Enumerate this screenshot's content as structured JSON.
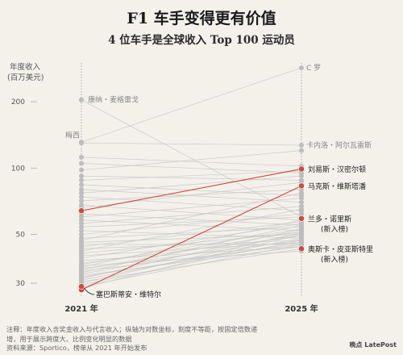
{
  "title": "F1 车手变得更有价值",
  "subtitle": "4 位车手是全球收入 Top 100 运动员",
  "notes": {
    "line1": "注释：年度收入含奖金收入与代言收入；纵轴为对数坐标，刻度不等距，按固定倍数递",
    "line2": "增，用于展示跨度大、比例变化明显的数据",
    "line3": "资料来源：Sportico，榜单从 2021 年开始发布"
  },
  "watermark": "晚点 LatePost",
  "colors": {
    "highlight": "#cf4a3d",
    "grey": "#c4c4c4",
    "axis": "#999999",
    "background": "#f3f1ea"
  },
  "chart_data": {
    "type": "line",
    "ylabel": [
      "年度收入",
      "(百万美元)"
    ],
    "yscale": "log",
    "ylim": [
      26,
      300
    ],
    "yticks": [
      30,
      50,
      100,
      200
    ],
    "x": [
      "2021 年",
      "2025 年"
    ],
    "highlighted": [
      {
        "name": "刘易斯・汉密尔顿",
        "values": [
          64,
          99
        ]
      },
      {
        "name": "马克斯・维斯塔潘",
        "values": [
          28,
          83
        ]
      },
      {
        "name": "塞巴斯蒂安・维特尔",
        "values": [
          29,
          null
        ]
      },
      {
        "name": "兰多・诺里斯",
        "extra": "(新入榜)",
        "values": [
          null,
          59
        ]
      },
      {
        "name": "奥斯卡・皮亚斯特里",
        "extra": "(新入榜)",
        "values": [
          null,
          43
        ]
      }
    ],
    "annotations": [
      {
        "label": "康纳・麦格雷戈",
        "year": "2021 年",
        "value": 204
      },
      {
        "label": "梅西",
        "year": "2021 年",
        "value": 131
      },
      {
        "label": "C 罗",
        "year": "2025 年",
        "value": 285
      },
      {
        "label": "卡内洛・阿尔瓦雷斯",
        "year": "2025 年",
        "value": 127
      }
    ],
    "others": [
      [
        204,
        60
      ],
      [
        131,
        285
      ],
      [
        130,
        127
      ],
      [
        112,
        102
      ],
      [
        105,
        95
      ],
      [
        98,
        120
      ],
      [
        92,
        88
      ],
      [
        88,
        97
      ],
      [
        84,
        75
      ],
      [
        80,
        70
      ],
      [
        77,
        92
      ],
      [
        74,
        64
      ],
      [
        71,
        80
      ],
      [
        68,
        58
      ],
      [
        66,
        86
      ],
      [
        62,
        55
      ],
      [
        60,
        73
      ],
      [
        58,
        52
      ],
      [
        56,
        67
      ],
      [
        54,
        60
      ],
      [
        52,
        48
      ],
      [
        50,
        62
      ],
      [
        48,
        54
      ],
      [
        47,
        77
      ],
      [
        46,
        50
      ],
      [
        45,
        45
      ],
      [
        44,
        57
      ],
      [
        43,
        47
      ],
      [
        42,
        65
      ],
      [
        41,
        51
      ],
      [
        40,
        46
      ],
      [
        39,
        56
      ],
      [
        38,
        44
      ],
      [
        37,
        49
      ],
      [
        36.5,
        53
      ],
      [
        36,
        42
      ],
      [
        35.5,
        58
      ],
      [
        35,
        47
      ],
      [
        34.5,
        52
      ],
      [
        34,
        45
      ],
      [
        33.5,
        55
      ],
      [
        33,
        50
      ],
      [
        32.5,
        44
      ],
      [
        32,
        46
      ],
      [
        31.5,
        53
      ],
      [
        31,
        48
      ],
      [
        30.5,
        43
      ],
      [
        30,
        51
      ],
      [
        29.5,
        47
      ],
      [
        29,
        45
      ],
      [
        28.5,
        50
      ]
    ]
  }
}
